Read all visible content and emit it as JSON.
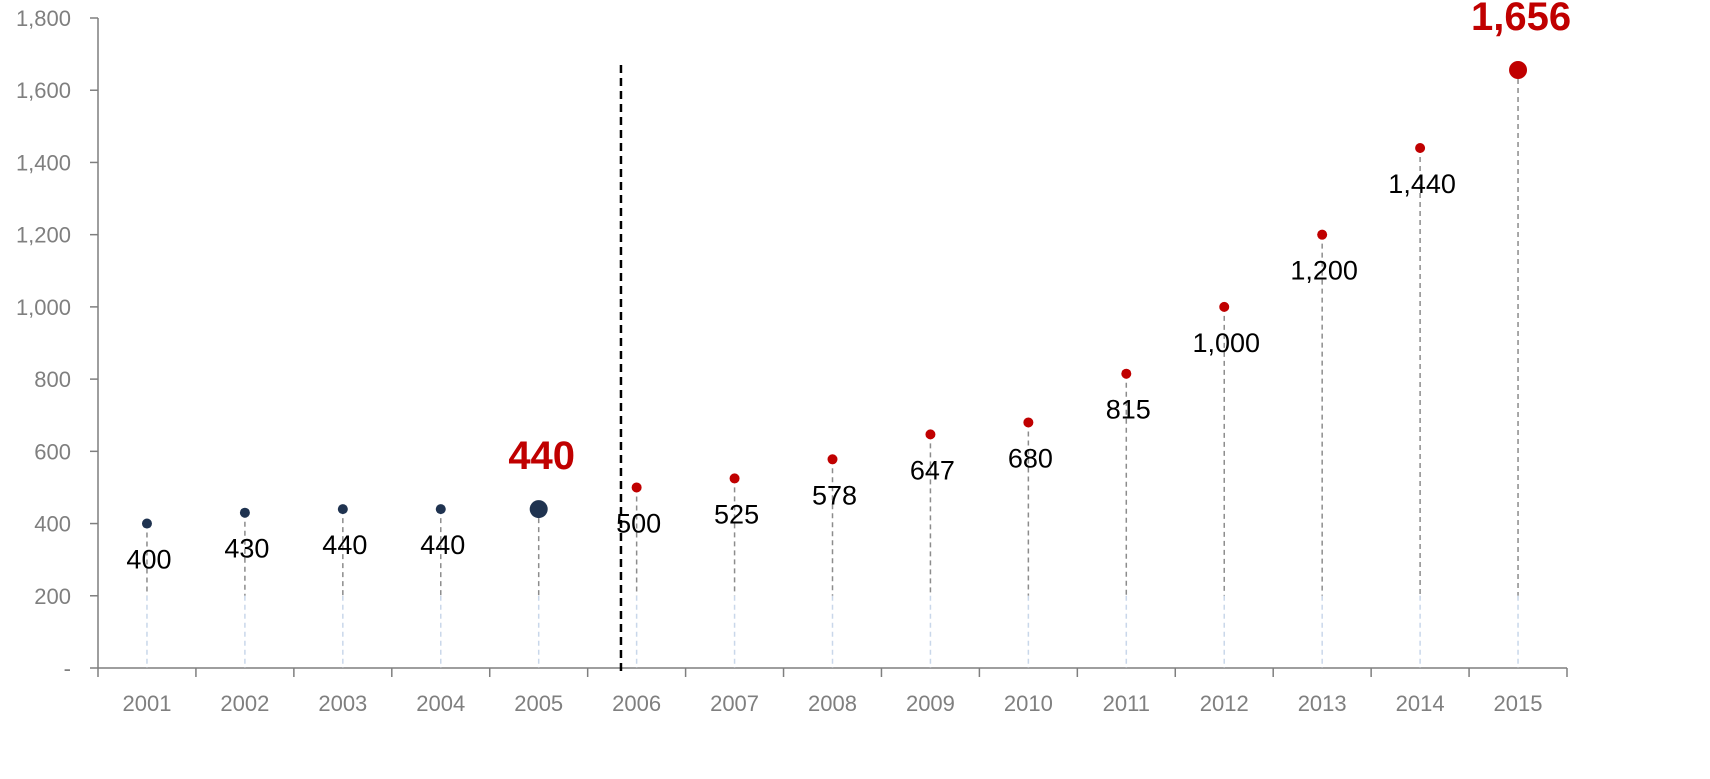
{
  "chart_data": {
    "type": "scatter",
    "categories": [
      "2001",
      "2002",
      "2003",
      "2004",
      "2005",
      "2006",
      "2007",
      "2008",
      "2009",
      "2010",
      "2011",
      "2012",
      "2013",
      "2014",
      "2015"
    ],
    "values": [
      400,
      430,
      440,
      440,
      440,
      500,
      525,
      578,
      647,
      680,
      815,
      1000,
      1200,
      1440,
      1656
    ],
    "data_labels": [
      "400",
      "430",
      "440",
      "440",
      "",
      "500",
      "525",
      "578",
      "647",
      "680",
      "815",
      "1,000",
      "1,200",
      "1,440",
      ""
    ],
    "y_ticks": [
      {
        "value": 0,
        "label": "-"
      },
      {
        "value": 200,
        "label": "200"
      },
      {
        "value": 400,
        "label": "400"
      },
      {
        "value": 600,
        "label": "600"
      },
      {
        "value": 800,
        "label": "800"
      },
      {
        "value": 1000,
        "label": "1,000"
      },
      {
        "value": 1200,
        "label": "1,200"
      },
      {
        "value": 1400,
        "label": "1,400"
      },
      {
        "value": 1600,
        "label": "1,600"
      },
      {
        "value": 1800,
        "label": "1,800"
      }
    ],
    "ylim": [
      0,
      1800
    ],
    "divider_between": [
      "2005",
      "2006"
    ],
    "highlights": [
      {
        "category": "2005",
        "value": 440,
        "label": "440"
      },
      {
        "category": "2015",
        "value": 1656,
        "label": "1,656"
      }
    ],
    "colors": {
      "before": "#1f3350",
      "after": "#c00000",
      "highlight_text": "#c00000",
      "axis": "#7f7f7f",
      "stem_light": "#c9d7ea",
      "stem_dark": "#8c8c8c",
      "divider": "#000000"
    },
    "title": "",
    "xlabel": "",
    "ylabel": "",
    "grid": false,
    "legend": "none"
  }
}
